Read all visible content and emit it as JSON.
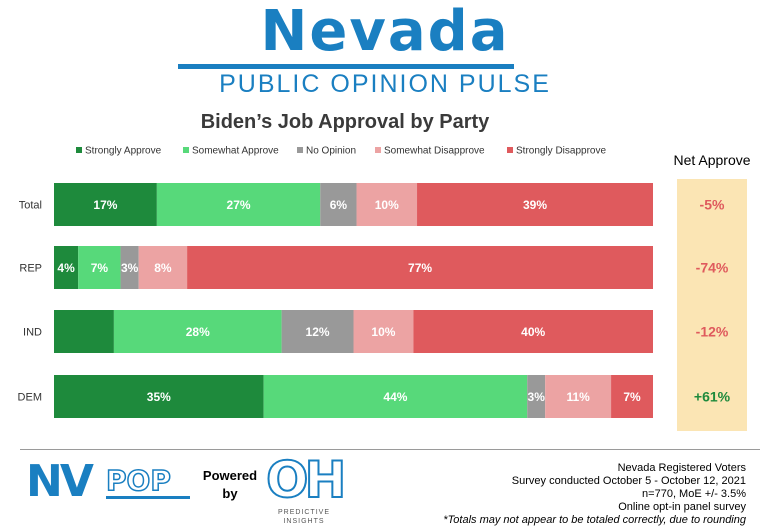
{
  "header": {
    "brand_title": "Nevada",
    "brand_subtitle": "PUBLIC OPINION PULSE",
    "brand_color": "#1a7fc1"
  },
  "chart_data": {
    "type": "bar",
    "orientation": "horizontal",
    "stacked": true,
    "title": "Biden’s Job Approval by Party",
    "categories": [
      "Total",
      "REP",
      "IND",
      "DEM"
    ],
    "series": [
      {
        "name": "Strongly Approve",
        "color": "#1e8a3c",
        "values": [
          17,
          4,
          10,
          35
        ]
      },
      {
        "name": "Somewhat Approve",
        "color": "#57d97a",
        "values": [
          27,
          7,
          28,
          44
        ]
      },
      {
        "name": "No Opinion",
        "color": "#999999",
        "values": [
          6,
          3,
          12,
          3
        ]
      },
      {
        "name": "Somewhat Disapprove",
        "color": "#eca3a3",
        "values": [
          10,
          8,
          10,
          11
        ]
      },
      {
        "name": "Strongly Disapprove",
        "color": "#df5a5d",
        "values": [
          39,
          77,
          40,
          7
        ]
      }
    ],
    "data_labels": [
      [
        "17%",
        "27%",
        "6%",
        "10%",
        "39%"
      ],
      [
        "4%",
        "7%",
        "3%",
        "8%",
        "77%"
      ],
      [
        "",
        "28%",
        "12%",
        "10%",
        "40%"
      ],
      [
        "35%",
        "44%",
        "3%",
        "11%",
        "7%"
      ]
    ],
    "net_approve": {
      "header": "Net Approve",
      "labels": [
        "-5%",
        "-74%",
        "-12%",
        "+61%"
      ],
      "values": [
        -5,
        -74,
        -12,
        61
      ],
      "negative_color": "#df5a5d",
      "positive_color": "#1e8a3c",
      "panel_color": "#fbe5b4"
    },
    "legend_position": "top",
    "grid": false
  },
  "footer": {
    "logo_left_a": "NV",
    "logo_left_b": "POP",
    "powered": "Powered",
    "by": "by",
    "logo_right": "OH",
    "logo_right_sub": "PREDICTIVE INSIGHTS",
    "notes": [
      "Nevada Registered Voters",
      "Survey conducted October 5 - October 12, 2021",
      "n=770, MoE +/- 3.5%",
      "Online opt-in panel survey",
      "*Totals may not appear to be totaled correctly, due to rounding"
    ]
  }
}
